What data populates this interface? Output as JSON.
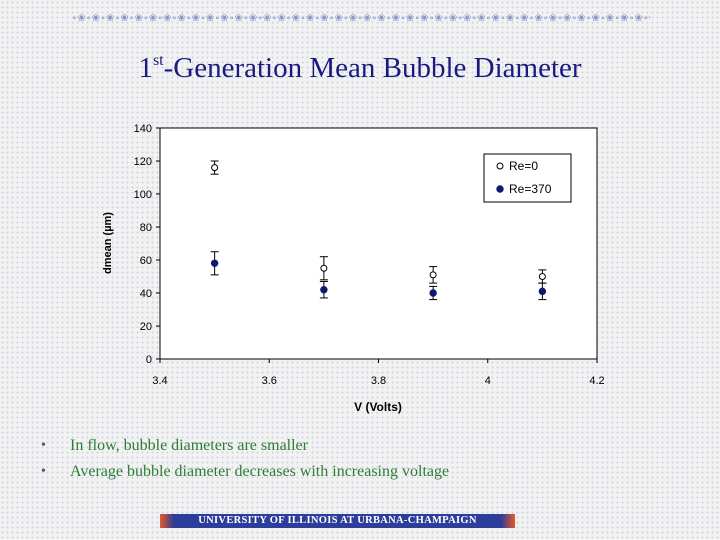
{
  "slide": {
    "title_prefix": "1",
    "title_sup": "st",
    "title_main": "-Generation Mean Bubble Diameter",
    "bullets": [
      "In flow, bubble diameters are smaller",
      "Average bubble diameter decreases with increasing voltage"
    ],
    "footer": "UNIVERSITY OF ILLINOIS AT URBANA-CHAMPAIGN",
    "bullet_glyph": "•",
    "ornament_text": "∘❀∘❀∘❀∘❀∘❀∘❀∘❀∘❀∘❀∘❀∘❀∘❀∘❀∘❀∘❀∘❀∘❀∘❀∘❀∘❀∘❀∘❀∘❀∘❀∘❀∘❀∘❀∘❀∘❀∘❀∘❀∘❀∘❀∘❀∘❀∘❀∘❀∘❀∘❀∘❀∘❀∘❀∘❀∘❀∘❀∘❀∘❀∘"
  },
  "colors": {
    "title": "#1a1a80",
    "bullet_text": "#2e7d32",
    "series_filled": "#0d1a6e",
    "axis": "#000000"
  },
  "chart_data": {
    "type": "scatter",
    "xlabel": "V (Volts)",
    "ylabel": "dmean (µm)",
    "xlim": [
      3.4,
      4.2
    ],
    "ylim": [
      0,
      140
    ],
    "xticks": [
      3.4,
      3.6,
      3.8,
      4,
      4.2
    ],
    "yticks": [
      0,
      20,
      40,
      60,
      80,
      100,
      120,
      140
    ],
    "grid": false,
    "legend_position": "top-right",
    "series": [
      {
        "name": "Re=0",
        "marker": "open-circle",
        "points": [
          {
            "x": 3.5,
            "y": 116,
            "err": 4
          },
          {
            "x": 3.7,
            "y": 55,
            "err": 7
          },
          {
            "x": 3.9,
            "y": 51,
            "err": 5
          },
          {
            "x": 4.1,
            "y": 50,
            "err": 4
          }
        ]
      },
      {
        "name": "Re=370",
        "marker": "filled-circle",
        "points": [
          {
            "x": 3.5,
            "y": 58,
            "err": 7
          },
          {
            "x": 3.7,
            "y": 42,
            "err": 5
          },
          {
            "x": 3.9,
            "y": 40,
            "err": 4
          },
          {
            "x": 4.1,
            "y": 41,
            "err": 5
          }
        ]
      }
    ]
  }
}
